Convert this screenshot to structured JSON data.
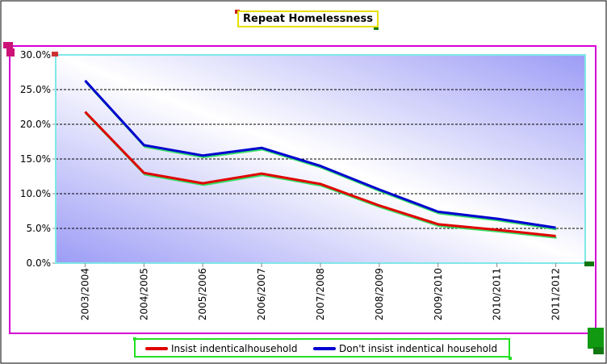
{
  "chart_data": {
    "type": "line",
    "title": "Repeat Homelessness",
    "categories": [
      "2003/2004",
      "2004/2005",
      "2005/2006",
      "2006/2007",
      "2007/2008",
      "2008/2009",
      "2009/2010",
      "2010/2011",
      "2011/2012"
    ],
    "series": [
      {
        "name": "Insist indenticalhousehold",
        "color": "#e00000",
        "values": [
          21.8,
          13.0,
          11.5,
          12.9,
          11.4,
          8.3,
          5.6,
          4.8,
          3.9
        ]
      },
      {
        "name": "Don't insist indentical household",
        "color": "#0000d0",
        "values": [
          26.3,
          17.0,
          15.5,
          16.6,
          14.0,
          10.6,
          7.4,
          6.4,
          5.1
        ]
      }
    ],
    "ylim": [
      0,
      30
    ],
    "yticks": [
      "0.0%",
      "5.0%",
      "10.0%",
      "15.0%",
      "20.0%",
      "25.0%",
      "30.0%"
    ],
    "grid": true,
    "legend_position": "bottom"
  }
}
